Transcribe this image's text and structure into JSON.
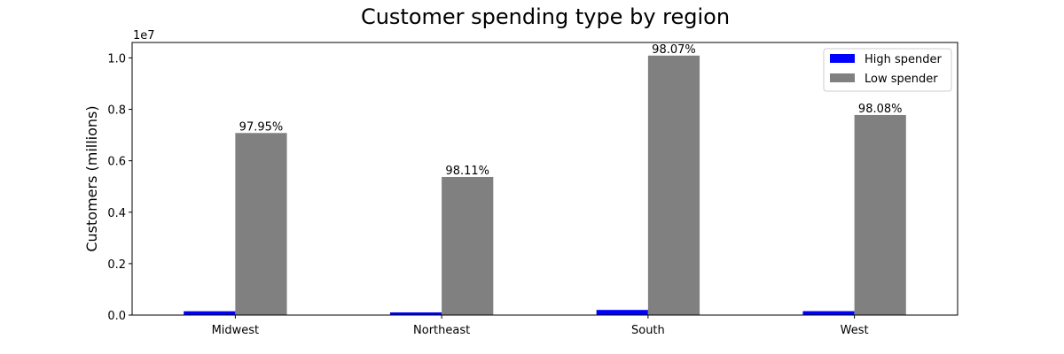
{
  "chart_data": {
    "type": "bar",
    "title": "Customer spending type by region",
    "xlabel": "",
    "ylabel": "Customers (millions)",
    "y_offset_text": "1e7",
    "ylim": [
      0,
      10600000
    ],
    "yticks": [
      0,
      2000000,
      4000000,
      6000000,
      8000000,
      10000000
    ],
    "ytick_labels": [
      "0.0",
      "0.2",
      "0.4",
      "0.6",
      "0.8",
      "1.0"
    ],
    "categories": [
      "Midwest",
      "Northeast",
      "South",
      "West"
    ],
    "series": [
      {
        "name": "High spender",
        "color": "#0000ff",
        "values": [
          148000,
          104000,
          199000,
          152000
        ]
      },
      {
        "name": "Low spender",
        "color": "#808080",
        "values": [
          7080000,
          5370000,
          10090000,
          7780000
        ]
      }
    ],
    "bar_labels": [
      "97.95%",
      "98.11%",
      "98.07%",
      "98.08%"
    ],
    "legend_position": "top-right",
    "grid": false
  }
}
